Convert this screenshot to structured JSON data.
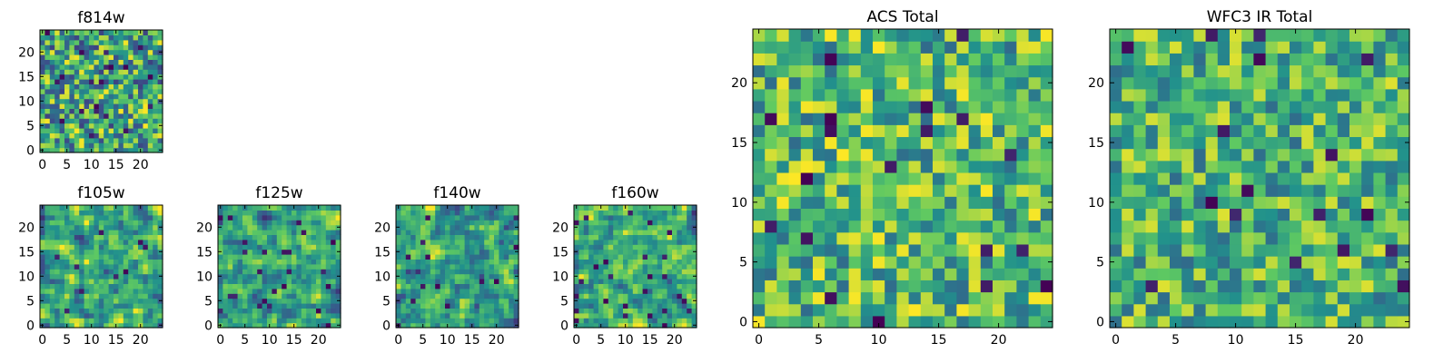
{
  "figure": {
    "title": ""
  },
  "colormap": {
    "name": "viridis",
    "stops": [
      "#440154",
      "#3b528b",
      "#21918c",
      "#5ec962",
      "#fde725"
    ]
  },
  "chart_data": [
    {
      "type": "heatmap",
      "title": "f814w",
      "grid": [
        25,
        25
      ],
      "xlim": [
        0,
        24
      ],
      "ylim": [
        0,
        24
      ],
      "xticks": [
        0,
        5,
        10,
        15,
        20
      ],
      "yticks": [
        0,
        5,
        10,
        15,
        20
      ],
      "seed": 11,
      "smooth": 0,
      "lo": 0.2,
      "hi": 1.0,
      "dark": 0.03
    },
    {
      "type": "heatmap",
      "title": "f105w",
      "grid": [
        25,
        25
      ],
      "xlim": [
        0,
        24
      ],
      "ylim": [
        0,
        24
      ],
      "xticks": [
        0,
        5,
        10,
        15,
        20
      ],
      "yticks": [
        0,
        5,
        10,
        15,
        20
      ],
      "seed": 23,
      "smooth": 1,
      "lo": 0.15,
      "hi": 1.0,
      "dark": 0.02
    },
    {
      "type": "heatmap",
      "title": "f125w",
      "grid": [
        25,
        25
      ],
      "xlim": [
        0,
        24
      ],
      "ylim": [
        0,
        24
      ],
      "xticks": [
        0,
        5,
        10,
        15,
        20
      ],
      "yticks": [
        0,
        5,
        10,
        15,
        20
      ],
      "seed": 37,
      "smooth": 1,
      "lo": 0.15,
      "hi": 1.0,
      "dark": 0.03
    },
    {
      "type": "heatmap",
      "title": "f140w",
      "grid": [
        25,
        25
      ],
      "xlim": [
        0,
        24
      ],
      "ylim": [
        0,
        24
      ],
      "xticks": [
        0,
        5,
        10,
        15,
        20
      ],
      "yticks": [
        0,
        5,
        10,
        15,
        20
      ],
      "seed": 41,
      "smooth": 1,
      "lo": 0.15,
      "hi": 1.0,
      "dark": 0.03
    },
    {
      "type": "heatmap",
      "title": "f160w",
      "grid": [
        25,
        25
      ],
      "xlim": [
        0,
        24
      ],
      "ylim": [
        0,
        24
      ],
      "xticks": [
        0,
        5,
        10,
        15,
        20
      ],
      "yticks": [
        0,
        5,
        10,
        15,
        20
      ],
      "seed": 53,
      "smooth": 1,
      "lo": 0.15,
      "hi": 1.0,
      "dark": 0.03
    },
    {
      "type": "heatmap",
      "title": "ACS Total",
      "grid": [
        25,
        25
      ],
      "xlim": [
        0,
        24
      ],
      "ylim": [
        0,
        24
      ],
      "xticks": [
        0,
        5,
        10,
        15,
        20
      ],
      "yticks": [
        0,
        5,
        10,
        15,
        20
      ],
      "seed": 67,
      "smooth": 0,
      "lo": 0.35,
      "hi": 1.0,
      "dark": 0.02
    },
    {
      "type": "heatmap",
      "title": "WFC3 IR Total",
      "grid": [
        25,
        25
      ],
      "xlim": [
        0,
        24
      ],
      "ylim": [
        0,
        24
      ],
      "xticks": [
        0,
        5,
        10,
        15,
        20
      ],
      "yticks": [
        0,
        5,
        10,
        15,
        20
      ],
      "seed": 79,
      "smooth": 0,
      "lo": 0.35,
      "hi": 0.95,
      "dark": 0.02
    }
  ]
}
